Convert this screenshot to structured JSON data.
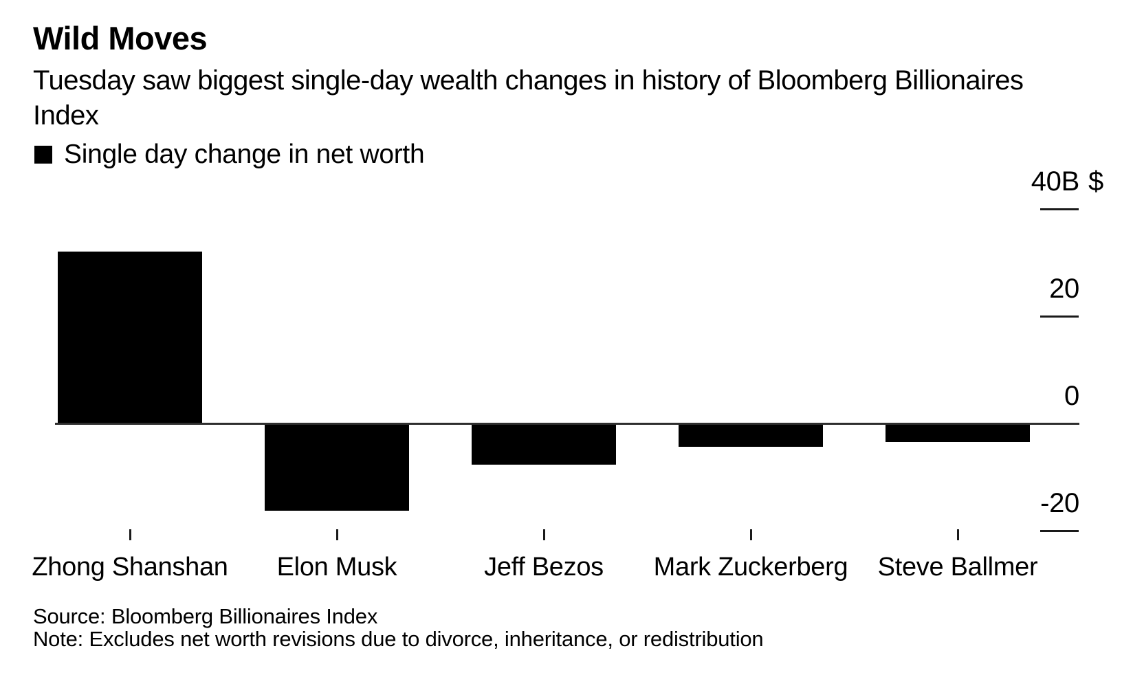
{
  "header": {
    "title": "Wild Moves",
    "subtitle": "Tuesday saw biggest single-day wealth changes in history of Bloomberg Billionaires Index"
  },
  "legend": {
    "label": "Single day change in net worth",
    "swatch_color": "#000000"
  },
  "chart_data": {
    "type": "bar",
    "title": "Wild Moves",
    "subtitle": "Tuesday saw biggest single-day wealth changes in history of Bloomberg Billionaires Index",
    "series_name": "Single day change in net worth",
    "categories": [
      "Zhong Shanshan",
      "Elon Musk",
      "Jeff Bezos",
      "Mark Zuckerberg",
      "Steve Ballmer"
    ],
    "values": [
      32,
      -16.3,
      -7.7,
      -4.3,
      -3.4
    ],
    "unit": "billions of US dollars",
    "xlabel": "",
    "ylabel": "",
    "y_axis": {
      "ticks": [
        40,
        20,
        0,
        -20
      ],
      "tick_labels": [
        "40B $",
        "20",
        "0",
        "-20"
      ],
      "ylim": [
        -24,
        44
      ],
      "side": "right"
    },
    "grid": false,
    "legend_position": "top-left",
    "bar_color": "#000000"
  },
  "footer": {
    "source": "Source: Bloomberg Billionaires Index",
    "note": "Note: Excludes net worth revisions due to divorce, inheritance, or redistribution"
  },
  "colors": {
    "background": "#ffffff",
    "bar": "#000000",
    "axis": "#2e2e2e",
    "text": "#000000"
  }
}
